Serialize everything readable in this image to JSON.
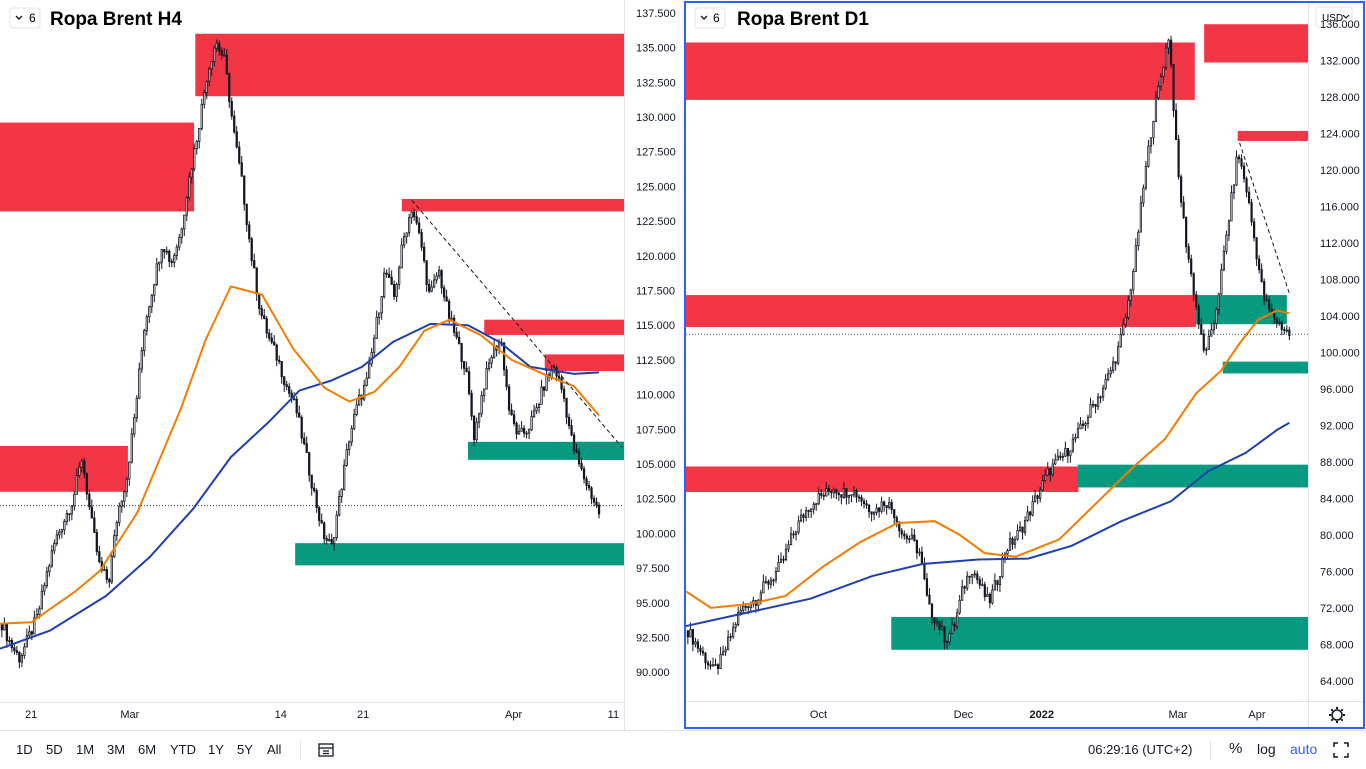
{
  "bottom_toolbar": {
    "timeframes": [
      "1D",
      "5D",
      "1M",
      "3M",
      "6M",
      "YTD",
      "1Y",
      "5Y",
      "All"
    ],
    "clock": "06:29:16 (UTC+2)",
    "percent_label": "%",
    "log_label": "log",
    "auto_label": "auto"
  },
  "colors": {
    "resistance_zone": "#f23645",
    "support_zone": "#089981",
    "ema_fast": "#f57c00",
    "sma_slow": "#1e40af",
    "candle": "#131722",
    "active_border": "#2962ff"
  },
  "chart_data": [
    {
      "type": "candlestick",
      "title": "Ropa Brent H4",
      "pane_counter": "6",
      "y_ticks": [
        "137.500",
        "135.000",
        "132.500",
        "130.000",
        "127.500",
        "125.000",
        "122.500",
        "120.000",
        "117.500",
        "115.000",
        "112.500",
        "110.000",
        "107.500",
        "105.000",
        "102.500",
        "100.000",
        "97.500",
        "95.000",
        "92.500",
        "90.000"
      ],
      "ylim": [
        88.0,
        138.0
      ],
      "x_ticks": [
        "21",
        "Mar",
        "14",
        "21",
        "Apr",
        "11"
      ],
      "last_price": 102.0,
      "price_path": [
        93.5,
        92.0,
        91.0,
        92.5,
        94.0,
        97.0,
        99.5,
        101.0,
        102.5,
        105.5,
        101.0,
        97.5,
        96.5,
        101.5,
        104.0,
        109.0,
        115.0,
        118.0,
        121.0,
        119.5,
        121.5,
        125.5,
        129.0,
        133.0,
        135.5,
        134.0,
        129.0,
        125.0,
        120.0,
        116.0,
        114.0,
        112.5,
        110.5,
        109.0,
        106.0,
        103.0,
        100.0,
        99.0,
        103.0,
        107.0,
        109.5,
        111.0,
        115.0,
        119.0,
        117.0,
        121.0,
        123.5,
        121.0,
        117.0,
        119.0,
        116.0,
        114.0,
        112.0,
        107.0,
        110.5,
        113.0,
        114.0,
        108.5,
        107.0,
        107.5,
        109.0,
        111.0,
        112.0,
        110.0,
        106.5,
        104.5,
        103.0,
        101.5
      ],
      "zones": [
        {
          "kind": "resistance",
          "from_x": 0.313,
          "to_x": 1.0,
          "low": 131.5,
          "high": 136.0
        },
        {
          "kind": "resistance",
          "from_x": 0.0,
          "to_x": 0.311,
          "low": 123.2,
          "high": 129.6
        },
        {
          "kind": "resistance",
          "from_x": 0.644,
          "to_x": 1.0,
          "low": 123.2,
          "high": 124.1
        },
        {
          "kind": "resistance",
          "from_x": 0.776,
          "to_x": 1.0,
          "low": 114.3,
          "high": 115.4
        },
        {
          "kind": "resistance",
          "from_x": 0.873,
          "to_x": 1.0,
          "low": 111.7,
          "high": 112.9
        },
        {
          "kind": "resistance",
          "from_x": 0.921,
          "to_x": 1.0,
          "low": 105.3,
          "high": 106.6
        },
        {
          "kind": "resistance",
          "from_x": 0.0,
          "to_x": 0.205,
          "low": 103.0,
          "high": 106.3
        },
        {
          "kind": "support",
          "from_x": 0.75,
          "to_x": 1.0,
          "low": 105.3,
          "high": 106.6
        },
        {
          "kind": "support",
          "from_x": 0.473,
          "to_x": 1.0,
          "low": 97.7,
          "high": 99.3
        }
      ],
      "ema_fast": [
        {
          "x": 0.0,
          "y": 93.5
        },
        {
          "x": 0.05,
          "y": 93.6
        },
        {
          "x": 0.12,
          "y": 95.8
        },
        {
          "x": 0.16,
          "y": 97.3
        },
        {
          "x": 0.22,
          "y": 101.5
        },
        {
          "x": 0.29,
          "y": 109.0
        },
        {
          "x": 0.33,
          "y": 114.0
        },
        {
          "x": 0.37,
          "y": 117.8
        },
        {
          "x": 0.42,
          "y": 117.2
        },
        {
          "x": 0.47,
          "y": 113.3
        },
        {
          "x": 0.52,
          "y": 110.5
        },
        {
          "x": 0.56,
          "y": 109.5
        },
        {
          "x": 0.6,
          "y": 110.2
        },
        {
          "x": 0.64,
          "y": 112.0
        },
        {
          "x": 0.68,
          "y": 114.6
        },
        {
          "x": 0.72,
          "y": 115.4
        },
        {
          "x": 0.77,
          "y": 114.3
        },
        {
          "x": 0.82,
          "y": 112.5
        },
        {
          "x": 0.88,
          "y": 111.3
        },
        {
          "x": 0.92,
          "y": 110.6
        },
        {
          "x": 0.96,
          "y": 108.5
        }
      ],
      "sma_slow": [
        {
          "x": 0.0,
          "y": 91.7
        },
        {
          "x": 0.08,
          "y": 93.0
        },
        {
          "x": 0.17,
          "y": 95.5
        },
        {
          "x": 0.24,
          "y": 98.3
        },
        {
          "x": 0.31,
          "y": 101.8
        },
        {
          "x": 0.37,
          "y": 105.5
        },
        {
          "x": 0.43,
          "y": 108.0
        },
        {
          "x": 0.48,
          "y": 110.3
        },
        {
          "x": 0.53,
          "y": 111.0
        },
        {
          "x": 0.58,
          "y": 112.0
        },
        {
          "x": 0.63,
          "y": 113.8
        },
        {
          "x": 0.69,
          "y": 115.1
        },
        {
          "x": 0.75,
          "y": 115.0
        },
        {
          "x": 0.8,
          "y": 113.8
        },
        {
          "x": 0.85,
          "y": 112.0
        },
        {
          "x": 0.92,
          "y": 111.5
        },
        {
          "x": 0.96,
          "y": 111.6
        }
      ],
      "trendline": {
        "x1": 0.66,
        "y1": 124.0,
        "x2": 0.997,
        "y2": 106.2
      }
    },
    {
      "type": "candlestick",
      "title": "Ropa Brent D1",
      "pane_counter": "6",
      "currency": "USD",
      "y_ticks": [
        "136.000",
        "132.000",
        "128.000",
        "124.000",
        "120.000",
        "116.000",
        "112.000",
        "108.000",
        "104.000",
        "100.000",
        "96.000",
        "92.000",
        "88.000",
        "84.000",
        "80.000",
        "76.000",
        "72.000",
        "68.000",
        "64.000"
      ],
      "ylim": [
        62.0,
        138.0
      ],
      "x_ticks": [
        "Oct",
        "Dec",
        "2022",
        "Mar",
        "Apr"
      ],
      "last_price": 102.0,
      "price_path": [
        69.5,
        68.0,
        66.5,
        65.0,
        66.5,
        69.0,
        71.5,
        72.5,
        73.0,
        74.5,
        75.5,
        77.0,
        79.5,
        81.5,
        83.0,
        84.0,
        84.5,
        85.2,
        84.6,
        85.0,
        84.2,
        83.0,
        82.8,
        83.8,
        82.5,
        80.0,
        79.5,
        78.0,
        72.0,
        70.5,
        68.5,
        70.0,
        74.0,
        76.5,
        74.5,
        72.5,
        75.0,
        78.5,
        79.5,
        81.0,
        83.0,
        85.0,
        87.0,
        88.0,
        89.0,
        90.5,
        92.0,
        94.0,
        95.5,
        97.5,
        100.0,
        104.0,
        110.0,
        118.0,
        125.0,
        130.0,
        135.0,
        120.0,
        112.0,
        106.0,
        100.0,
        102.0,
        108.0,
        115.0,
        122.0,
        118.0,
        112.0,
        106.0,
        104.0,
        103.0,
        102.0
      ],
      "zones": [
        {
          "kind": "resistance",
          "from_x": 0.833,
          "to_x": 1.0,
          "low": 131.8,
          "high": 136.0
        },
        {
          "kind": "resistance",
          "from_x": 0.0,
          "to_x": 0.818,
          "low": 127.7,
          "high": 134.0
        },
        {
          "kind": "resistance",
          "from_x": 0.887,
          "to_x": 1.0,
          "low": 123.2,
          "high": 124.3
        },
        {
          "kind": "resistance",
          "from_x": 0.0,
          "to_x": 0.82,
          "low": 102.8,
          "high": 106.3
        },
        {
          "kind": "resistance",
          "from_x": 0.0,
          "to_x": 0.631,
          "low": 84.7,
          "high": 87.5
        },
        {
          "kind": "support",
          "from_x": 0.82,
          "to_x": 0.966,
          "low": 103.1,
          "high": 106.3
        },
        {
          "kind": "support",
          "from_x": 0.863,
          "to_x": 1.0,
          "low": 97.7,
          "high": 99.0
        },
        {
          "kind": "support",
          "from_x": 0.63,
          "to_x": 1.0,
          "low": 85.2,
          "high": 87.7
        },
        {
          "kind": "support",
          "from_x": 0.33,
          "to_x": 1.0,
          "low": 67.4,
          "high": 71.0
        }
      ],
      "ema_fast": [
        {
          "x": 0.0,
          "y": 73.8
        },
        {
          "x": 0.04,
          "y": 72.0
        },
        {
          "x": 0.1,
          "y": 72.4
        },
        {
          "x": 0.16,
          "y": 73.3
        },
        {
          "x": 0.22,
          "y": 76.5
        },
        {
          "x": 0.28,
          "y": 79.2
        },
        {
          "x": 0.34,
          "y": 81.3
        },
        {
          "x": 0.4,
          "y": 81.5
        },
        {
          "x": 0.44,
          "y": 80.0
        },
        {
          "x": 0.48,
          "y": 78.0
        },
        {
          "x": 0.53,
          "y": 77.6
        },
        {
          "x": 0.6,
          "y": 79.5
        },
        {
          "x": 0.66,
          "y": 83.5
        },
        {
          "x": 0.72,
          "y": 87.5
        },
        {
          "x": 0.77,
          "y": 90.5
        },
        {
          "x": 0.82,
          "y": 95.5
        },
        {
          "x": 0.86,
          "y": 98.0
        },
        {
          "x": 0.89,
          "y": 101.0
        },
        {
          "x": 0.92,
          "y": 103.6
        },
        {
          "x": 0.95,
          "y": 104.6
        },
        {
          "x": 0.97,
          "y": 104.3
        }
      ],
      "sma_slow": [
        {
          "x": 0.0,
          "y": 70.0
        },
        {
          "x": 0.1,
          "y": 71.5
        },
        {
          "x": 0.2,
          "y": 73.0
        },
        {
          "x": 0.3,
          "y": 75.5
        },
        {
          "x": 0.38,
          "y": 76.8
        },
        {
          "x": 0.47,
          "y": 77.3
        },
        {
          "x": 0.55,
          "y": 77.4
        },
        {
          "x": 0.62,
          "y": 78.8
        },
        {
          "x": 0.7,
          "y": 81.5
        },
        {
          "x": 0.78,
          "y": 83.7
        },
        {
          "x": 0.84,
          "y": 87.0
        },
        {
          "x": 0.9,
          "y": 89.0
        },
        {
          "x": 0.95,
          "y": 91.5
        },
        {
          "x": 0.97,
          "y": 92.3
        }
      ],
      "trendline": {
        "x1": 0.89,
        "y1": 123.0,
        "x2": 0.97,
        "y2": 106.5
      }
    }
  ]
}
